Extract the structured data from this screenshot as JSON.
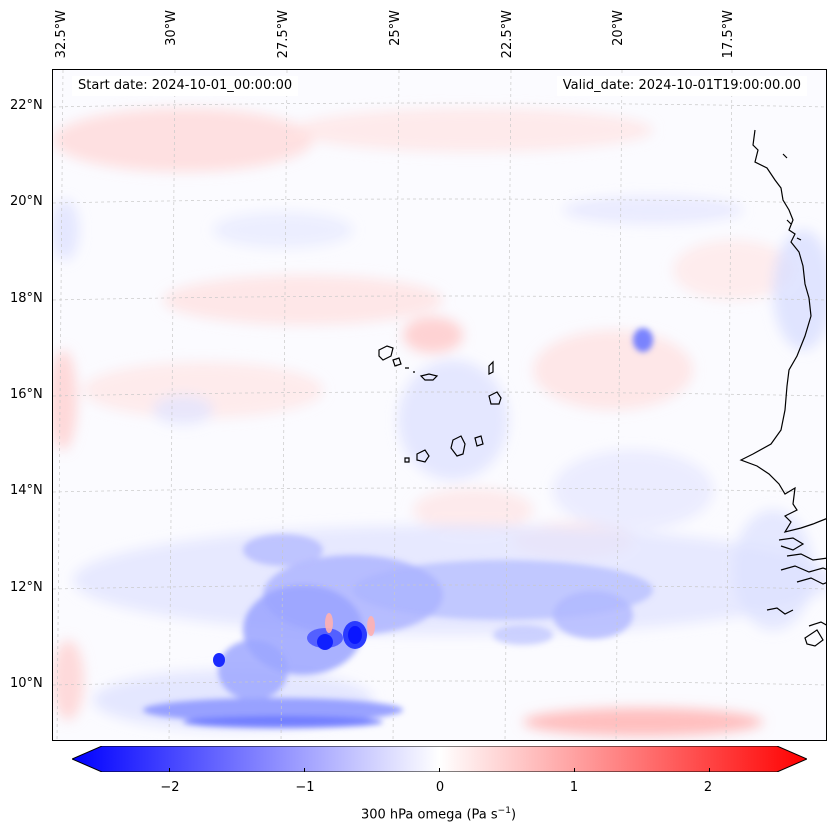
{
  "map": {
    "header_start": "Start date: 2024-10-01_00:00:00",
    "header_valid": "Valid_date: 2024-10-01T19:00:00.00",
    "longitude_labels": [
      "32.5°W",
      "30°W",
      "27.5°W",
      "25°W",
      "22.5°W",
      "20°W",
      "17.5°W"
    ],
    "latitude_labels": [
      "22°N",
      "20°N",
      "18°N",
      "16°N",
      "14°N",
      "12°N",
      "10°N"
    ],
    "variable": "300 hPa omega",
    "colors": {
      "strong_ascent": "#0000ff",
      "strong_descent": "#ff0000",
      "neutral": "#ffffff",
      "coastline": "#000000"
    }
  },
  "colorbar": {
    "ticks": [
      "−2",
      "−1",
      "0",
      "1",
      "2"
    ],
    "tick_values": [
      -2,
      -1,
      0,
      1,
      2
    ],
    "range": [
      -2.5,
      2.5
    ],
    "label_main": "300 hPa omega (Pa s",
    "label_exp": "−1",
    "label_close": ")"
  }
}
